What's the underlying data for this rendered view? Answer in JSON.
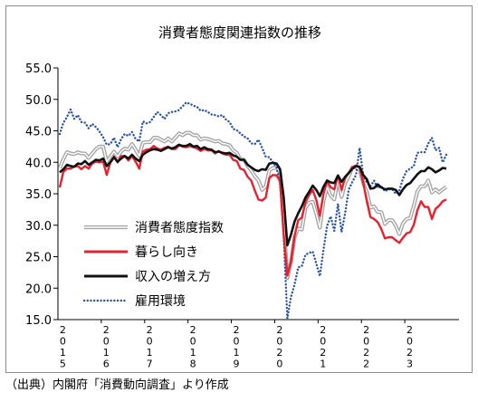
{
  "chart_data": {
    "type": "line",
    "title": "消費者態度関連指数の推移",
    "ylim": [
      15,
      55
    ],
    "yticks": [
      "55.0",
      "50.0",
      "45.0",
      "40.0",
      "35.0",
      "30.0",
      "25.0",
      "20.0",
      "15.0"
    ],
    "year_labels": [
      {
        "year": "2015",
        "chars": [
          "2",
          "0",
          "1",
          "5"
        ]
      },
      {
        "year": "2016",
        "chars": [
          "2",
          "0",
          "1",
          "6"
        ]
      },
      {
        "year": "2017",
        "chars": [
          "2",
          "0",
          "1",
          "7"
        ]
      },
      {
        "year": "2018",
        "chars": [
          "2",
          "0",
          "1",
          "8"
        ]
      },
      {
        "year": "2019",
        "chars": [
          "2",
          "0",
          "1",
          "9"
        ]
      },
      {
        "year": "2020",
        "chars": [
          "2",
          "0",
          "2",
          "0"
        ]
      },
      {
        "year": "2021",
        "chars": [
          "2",
          "0",
          "2",
          "1"
        ]
      },
      {
        "year": "2022",
        "chars": [
          "2",
          "0",
          "2",
          "2"
        ]
      },
      {
        "year": "2023",
        "chars": [
          "2",
          "0",
          "2",
          "3"
        ]
      }
    ],
    "x_start": "2015-01",
    "legend_position": "lower-left",
    "grid": false,
    "series": [
      {
        "name": "消費者態度指数",
        "color": "#a6a6a6",
        "style": "double-line",
        "values": [
          39.1,
          40.5,
          41.6,
          41.4,
          41.3,
          41.6,
          41.4,
          41.4,
          40.7,
          41.4,
          42.1,
          42.5,
          42.5,
          40.1,
          40.9,
          41.7,
          40.9,
          41.7,
          42.2,
          42.0,
          42.9,
          42.0,
          41.0,
          43.1,
          43.2,
          43.2,
          43.9,
          43.9,
          43.6,
          43.3,
          43.8,
          43.3,
          43.9,
          44.6,
          44.3,
          44.7,
          44.7,
          44.3,
          44.3,
          43.6,
          43.8,
          43.7,
          43.5,
          43.3,
          43.4,
          43.0,
          42.9,
          42.7,
          41.9,
          41.5,
          40.5,
          40.4,
          39.4,
          38.7,
          37.8,
          37.1,
          35.6,
          36.2,
          38.7,
          39.1,
          39.1,
          38.4,
          30.9,
          21.6,
          24.1,
          28.1,
          29.5,
          29.3,
          32.7,
          33.6,
          33.7,
          31.8,
          29.6,
          33.8,
          36.1,
          34.7,
          34.1,
          37.4,
          34.5,
          36.7,
          37.8,
          39.2,
          39.2,
          38.8,
          36.7,
          35.3,
          32.8,
          33.0,
          32.1,
          32.1,
          30.2,
          30.8,
          30.8,
          29.9,
          28.6,
          30.3,
          31.0,
          31.1,
          33.1,
          35.4,
          36.2,
          36.2,
          37.1,
          35.2,
          35.7,
          35.2,
          35.7,
          36.1
        ]
      },
      {
        "name": "暮らし向き",
        "color": "#e8212f",
        "style": "solid",
        "values": [
          36.0,
          38.5,
          39.0,
          39.0,
          39.3,
          39.4,
          38.9,
          39.4,
          39.0,
          39.8,
          40.1,
          40.0,
          40.1,
          38.0,
          40.0,
          40.9,
          40.0,
          41.0,
          41.0,
          40.3,
          41.0,
          40.1,
          39.0,
          41.7,
          42.0,
          42.1,
          42.6,
          42.2,
          42.0,
          42.3,
          42.5,
          42.1,
          42.1,
          42.7,
          42.5,
          42.4,
          42.6,
          42.4,
          42.2,
          41.8,
          42.1,
          41.9,
          41.9,
          41.4,
          41.8,
          41.4,
          41.2,
          41.2,
          40.4,
          40.2,
          39.0,
          38.8,
          37.7,
          37.1,
          35.5,
          34.1,
          33.9,
          34.4,
          37.5,
          38.0,
          37.9,
          37.0,
          28.5,
          22.0,
          24.2,
          28.3,
          30.8,
          31.2,
          33.6,
          34.8,
          35.6,
          34.0,
          31.5,
          35.0,
          37.0,
          36.0,
          35.7,
          37.9,
          35.6,
          37.6,
          38.4,
          39.2,
          39.5,
          39.2,
          36.8,
          33.8,
          31.3,
          31.0,
          30.5,
          29.4,
          27.9,
          28.1,
          28.1,
          27.6,
          27.2,
          28.0,
          28.7,
          28.9,
          30.1,
          32.4,
          33.8,
          32.9,
          32.9,
          31.0,
          32.6,
          33.1,
          33.8,
          34.1
        ]
      },
      {
        "name": "収入の増え方",
        "color": "#111111",
        "style": "solid",
        "values": [
          38.4,
          38.9,
          39.6,
          39.4,
          39.3,
          39.8,
          39.7,
          40.2,
          39.6,
          40.0,
          40.4,
          40.3,
          40.6,
          39.4,
          40.0,
          40.8,
          40.1,
          40.6,
          41.0,
          40.6,
          41.2,
          40.6,
          40.2,
          41.2,
          41.6,
          41.9,
          42.1,
          42.0,
          41.8,
          42.1,
          42.4,
          42.2,
          42.4,
          42.8,
          42.6,
          42.6,
          42.9,
          42.5,
          42.6,
          42.1,
          42.4,
          42.1,
          42.0,
          41.6,
          41.7,
          41.5,
          41.4,
          41.5,
          41.1,
          40.9,
          40.4,
          40.4,
          39.6,
          39.2,
          38.8,
          38.6,
          38.9,
          38.8,
          39.8,
          39.9,
          39.8,
          38.9,
          34.4,
          26.8,
          28.5,
          30.6,
          31.9,
          33.0,
          34.4,
          35.3,
          36.3,
          35.6,
          34.6,
          36.1,
          37.1,
          36.8,
          36.7,
          37.9,
          36.9,
          37.7,
          38.3,
          39.0,
          39.4,
          39.3,
          38.0,
          37.3,
          35.8,
          35.9,
          36.5,
          36.0,
          35.7,
          35.8,
          35.8,
          35.6,
          34.8,
          35.7,
          36.4,
          36.7,
          37.4,
          38.1,
          38.6,
          38.6,
          39.2,
          38.9,
          38.4,
          38.7,
          39.1,
          39.0
        ]
      },
      {
        "name": "雇用環境",
        "color": "#2a52a8",
        "style": "dotted",
        "values": [
          44.5,
          46.3,
          47.2,
          48.4,
          46.9,
          47.5,
          46.4,
          46.3,
          45.4,
          46.1,
          45.6,
          44.9,
          44.0,
          42.8,
          42.9,
          43.9,
          42.4,
          43.7,
          44.5,
          44.2,
          44.8,
          43.7,
          43.3,
          46.5,
          46.2,
          46.4,
          47.2,
          48.0,
          47.5,
          46.9,
          47.8,
          48.0,
          48.1,
          48.3,
          48.9,
          49.5,
          49.3,
          49.0,
          48.8,
          48.2,
          48.3,
          48.0,
          47.6,
          47.5,
          47.3,
          47.5,
          46.8,
          46.4,
          45.3,
          45.1,
          44.6,
          44.1,
          43.8,
          43.0,
          42.9,
          43.6,
          42.3,
          40.9,
          40.8,
          40.0,
          39.2,
          36.5,
          28.0,
          15.2,
          18.6,
          20.6,
          23.3,
          23.5,
          25.3,
          25.6,
          25.8,
          23.9,
          21.9,
          26.1,
          29.9,
          31.4,
          29.1,
          33.4,
          28.9,
          32.0,
          35.7,
          36.9,
          38.0,
          42.3,
          37.9,
          36.8,
          36.2,
          37.1,
          35.9,
          36.2,
          35.4,
          35.7,
          35.7,
          35.0,
          35.5,
          37.4,
          38.6,
          39.0,
          39.4,
          41.5,
          41.6,
          41.6,
          43.0,
          43.9,
          41.9,
          42.3,
          40.0,
          41.2
        ]
      }
    ]
  },
  "source_note": "（出典）内閣府「消費動向調査」より作成"
}
